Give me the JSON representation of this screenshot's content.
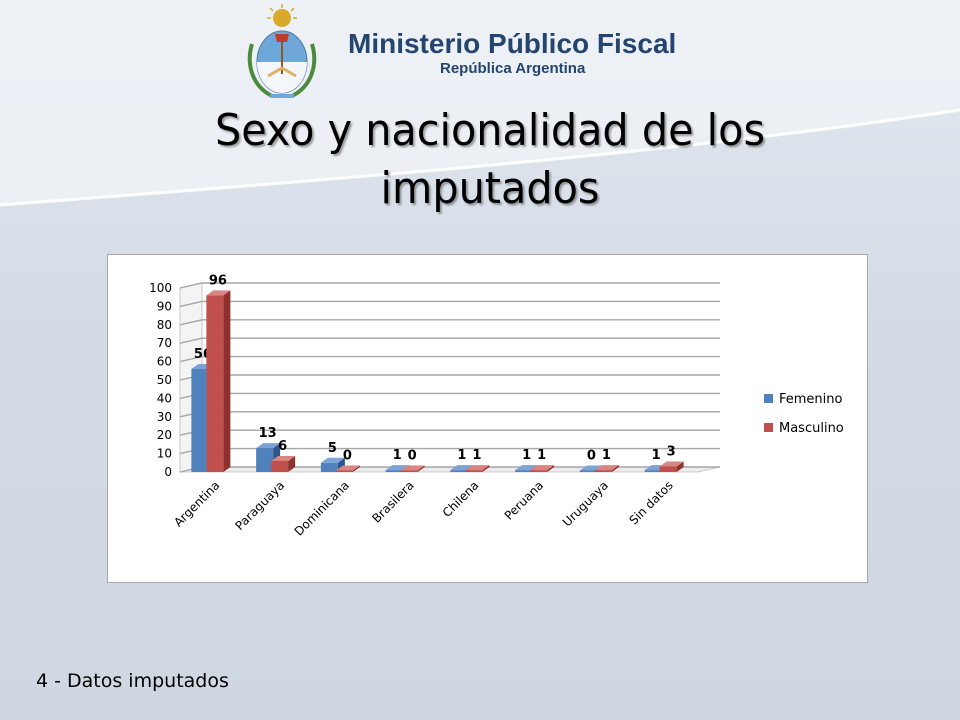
{
  "header": {
    "org_name": "Ministerio Público Fiscal",
    "org_sub": "República Argentina"
  },
  "slide": {
    "title_line1": "Sexo y nacionalidad de los",
    "title_line2": "imputados",
    "footer": "4 - Datos imputados"
  },
  "colors": {
    "femenino": "#4f81bd",
    "masculino": "#c0504d",
    "gridline": "#a6a6a6"
  },
  "chart_data": {
    "type": "bar",
    "categories": [
      "Argentina",
      "Paraguaya",
      "Dominicana",
      "Brasilera",
      "Chilena",
      "Peruana",
      "Uruguaya",
      "Sin datos"
    ],
    "series": [
      {
        "name": "Femenino",
        "values": [
          56,
          13,
          5,
          1,
          1,
          1,
          0,
          1
        ]
      },
      {
        "name": "Masculino",
        "values": [
          96,
          6,
          0,
          0,
          1,
          1,
          1,
          3
        ]
      }
    ],
    "ylim": [
      0,
      100
    ],
    "yticks": [
      0,
      10,
      20,
      30,
      40,
      50,
      60,
      70,
      80,
      90,
      100
    ],
    "grid": true,
    "legend": "right",
    "style": "3d-clustered-column"
  }
}
